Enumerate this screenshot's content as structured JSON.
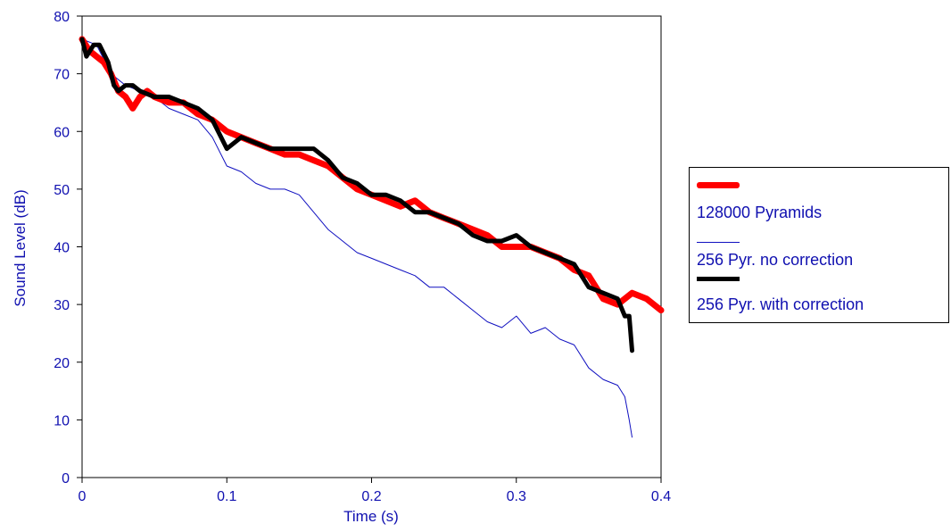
{
  "chart_data": {
    "type": "line",
    "xlabel": "Time (s)",
    "ylabel": "Sound Level (dB)",
    "xlim": [
      0,
      0.4
    ],
    "ylim": [
      0,
      80
    ],
    "xticks": [
      "0",
      "0.1",
      "0.2",
      "0.3",
      "0.4"
    ],
    "yticks": [
      "0",
      "10",
      "20",
      "30",
      "40",
      "50",
      "60",
      "70",
      "80"
    ],
    "grid": false,
    "legend_position": "right",
    "colors": {
      "axis_text": "#1010b0",
      "axis_line": "#000000"
    },
    "series": [
      {
        "name": "128000 Pyramids",
        "color": "#ff0000",
        "style": "thick",
        "x": [
          0,
          0.005,
          0.01,
          0.015,
          0.02,
          0.025,
          0.03,
          0.035,
          0.04,
          0.045,
          0.05,
          0.06,
          0.07,
          0.08,
          0.09,
          0.1,
          0.11,
          0.12,
          0.13,
          0.14,
          0.15,
          0.16,
          0.17,
          0.18,
          0.19,
          0.2,
          0.21,
          0.22,
          0.23,
          0.24,
          0.25,
          0.26,
          0.27,
          0.28,
          0.29,
          0.3,
          0.31,
          0.32,
          0.33,
          0.34,
          0.35,
          0.36,
          0.37,
          0.38,
          0.39,
          0.4
        ],
        "y": [
          76,
          74,
          73,
          72,
          70,
          67,
          66,
          64,
          66,
          67,
          66,
          65,
          65,
          63,
          62,
          60,
          59,
          58,
          57,
          56,
          56,
          55,
          54,
          52,
          50,
          49,
          48,
          47,
          48,
          46,
          45,
          44,
          43,
          42,
          40,
          40,
          40,
          39,
          38,
          36,
          35,
          31,
          30,
          32,
          31,
          29
        ]
      },
      {
        "name": "256 Pyr. no correction",
        "color": "#1010c0",
        "style": "thin",
        "x": [
          0,
          0.01,
          0.02,
          0.03,
          0.04,
          0.05,
          0.06,
          0.07,
          0.08,
          0.09,
          0.1,
          0.11,
          0.12,
          0.13,
          0.14,
          0.15,
          0.16,
          0.17,
          0.18,
          0.19,
          0.2,
          0.21,
          0.22,
          0.23,
          0.24,
          0.25,
          0.26,
          0.27,
          0.28,
          0.29,
          0.3,
          0.31,
          0.32,
          0.33,
          0.34,
          0.35,
          0.36,
          0.37,
          0.375,
          0.378,
          0.38
        ],
        "y": [
          76,
          75,
          70,
          68,
          67,
          66,
          64,
          63,
          62,
          59,
          54,
          53,
          51,
          50,
          50,
          49,
          46,
          43,
          41,
          39,
          38,
          37,
          36,
          35,
          33,
          33,
          31,
          29,
          27,
          26,
          28,
          25,
          26,
          24,
          23,
          19,
          17,
          16,
          14,
          10,
          7
        ]
      },
      {
        "name": "256 Pyr. with correction",
        "color": "#000000",
        "style": "thick",
        "x": [
          0,
          0.003,
          0.008,
          0.012,
          0.018,
          0.022,
          0.025,
          0.03,
          0.035,
          0.04,
          0.05,
          0.06,
          0.07,
          0.08,
          0.09,
          0.1,
          0.11,
          0.12,
          0.13,
          0.14,
          0.15,
          0.16,
          0.17,
          0.18,
          0.19,
          0.2,
          0.21,
          0.22,
          0.23,
          0.24,
          0.25,
          0.26,
          0.27,
          0.28,
          0.29,
          0.3,
          0.31,
          0.32,
          0.33,
          0.34,
          0.35,
          0.36,
          0.37,
          0.375,
          0.378,
          0.38
        ],
        "y": [
          76,
          73,
          75,
          75,
          72,
          68,
          67,
          68,
          68,
          67,
          66,
          66,
          65,
          64,
          62,
          57,
          59,
          58,
          57,
          57,
          57,
          57,
          55,
          52,
          51,
          49,
          49,
          48,
          46,
          46,
          45,
          44,
          42,
          41,
          41,
          42,
          40,
          39,
          38,
          37,
          33,
          32,
          31,
          28,
          28,
          22
        ]
      }
    ]
  }
}
